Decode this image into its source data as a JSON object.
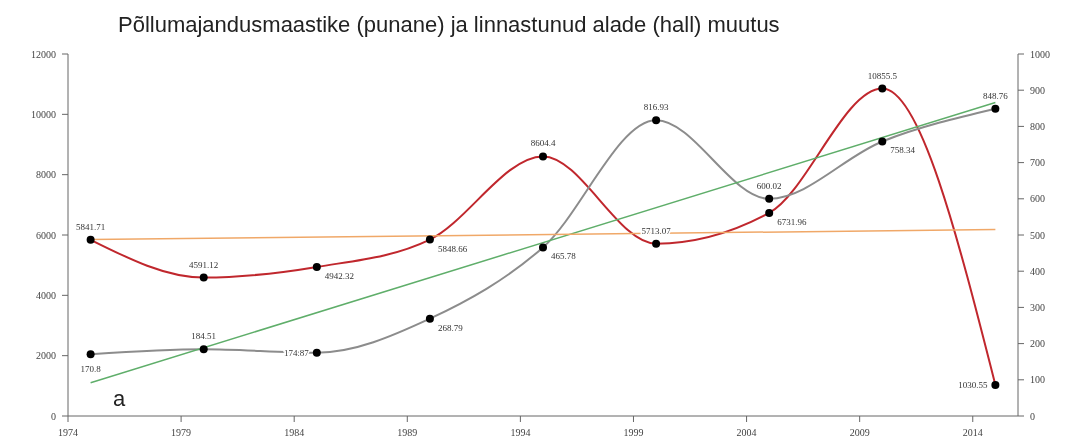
{
  "chart_data": {
    "type": "line",
    "title": "Põllumajandusmaastike (punane) ja linnastunud alade (hall) muutus",
    "x": [
      1975,
      1980,
      1985,
      1990,
      1995,
      2000,
      2005,
      2010,
      2015
    ],
    "series": [
      {
        "color": "#c0272d",
        "values": [
          5841.71,
          4591.12,
          4942.32,
          5848.66,
          8604.4,
          5713.07,
          6731.96,
          10855.5,
          1030.55
        ]
      },
      {
        "color": "#8c8c8c",
        "axis": "y2",
        "values": [
          170.8,
          184.51,
          174.87,
          268.79,
          465.78,
          816.93,
          600.02,
          758.34,
          848.76
        ]
      },
      {
        "type": "line",
        "color": "#5fae6a",
        "axis": "y2",
        "values": [
          92,
          null,
          null,
          null,
          null,
          null,
          null,
          null,
          866
        ],
        "marker": "none",
        "data_labels": false
      },
      {
        "type": "line",
        "color": "#f0a868",
        "values": [
          5850,
          null,
          null,
          null,
          null,
          null,
          null,
          null,
          6180
        ],
        "marker": "none",
        "data_labels": false
      }
    ],
    "xlim": [
      1974,
      2016
    ],
    "xticks": [
      1974,
      1979,
      1984,
      1989,
      1994,
      1999,
      2004,
      2009,
      2014
    ],
    "ylim": [
      0,
      12000
    ],
    "yticks": [
      0,
      2000,
      4000,
      6000,
      8000,
      10000,
      12000
    ],
    "y2lim": [
      0,
      1000
    ],
    "y2ticks": [
      0,
      100,
      200,
      300,
      400,
      500,
      600,
      700,
      800,
      900,
      1000
    ],
    "annotations": [
      "a"
    ],
    "marker": "circle",
    "data_labels": true
  }
}
